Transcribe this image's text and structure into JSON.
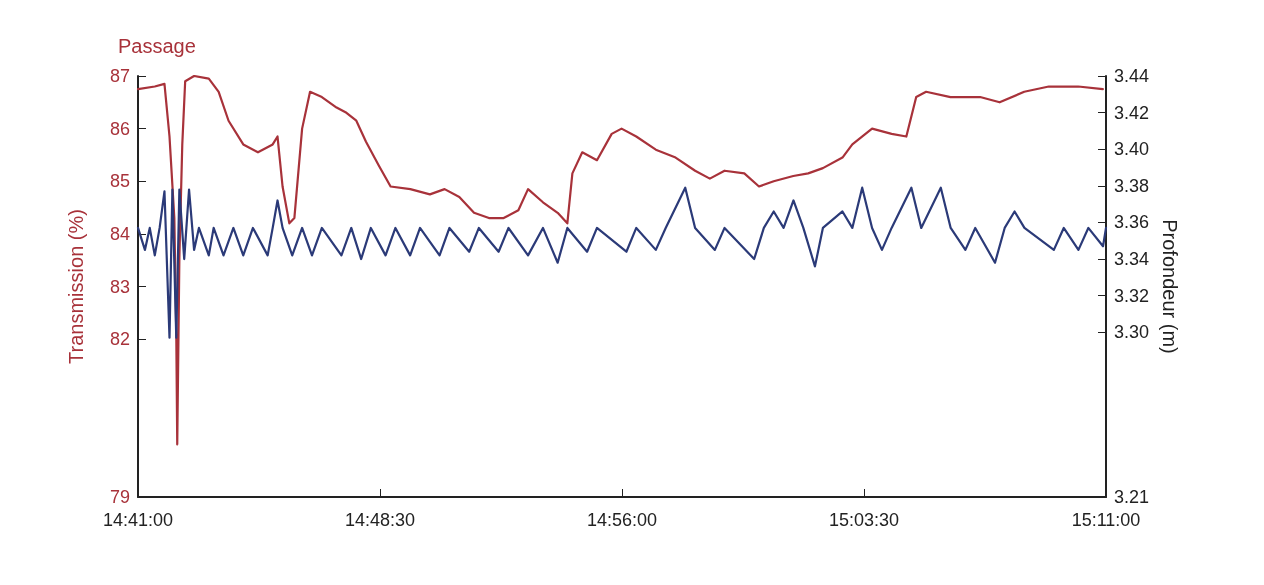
{
  "chart_data": {
    "type": "line",
    "ylabel": "Transmission (%)",
    "y2label": "Profondeur (m)",
    "annotations": [
      "Passage"
    ],
    "xlim": [
      14.68333,
      15.18333
    ],
    "xticks": [
      {
        "value": 14.68333,
        "label": "14:41:00"
      },
      {
        "value": 14.80833,
        "label": "14:48:30"
      },
      {
        "value": 14.93333,
        "label": "14:56:00"
      },
      {
        "value": 15.05833,
        "label": "15:03:30"
      },
      {
        "value": 15.18333,
        "label": "15:11:00"
      }
    ],
    "ylim": [
      79,
      87
    ],
    "yticks": [
      79,
      82,
      83,
      84,
      85,
      86,
      87
    ],
    "y2lim": [
      3.21,
      3.44
    ],
    "y2ticks": [
      3.21,
      {
        "value": 3.3,
        "label": "3.30"
      },
      3.32,
      3.34,
      3.36,
      3.38,
      {
        "value": 3.4,
        "label": "3.40"
      },
      3.42,
      3.44
    ],
    "grid": false,
    "marker": "none",
    "line_style": "solid",
    "series": [
      {
        "color": "#a8323a",
        "axis": "y",
        "x": [
          14.68333,
          14.692,
          14.697,
          14.6996,
          14.7021,
          14.7031,
          14.7036,
          14.7047,
          14.7062,
          14.7077,
          14.7123,
          14.7199,
          14.725,
          14.7301,
          14.7377,
          14.7453,
          14.7529,
          14.7554,
          14.758,
          14.7615,
          14.7641,
          14.7681,
          14.7722,
          14.7783,
          14.7859,
          14.791,
          14.7961,
          14.8011,
          14.8077,
          14.8138,
          14.824,
          14.8341,
          14.8417,
          14.8493,
          14.8569,
          14.8646,
          14.8722,
          14.8798,
          14.8848,
          14.8925,
          14.9001,
          14.9051,
          14.9077,
          14.9128,
          14.9204,
          14.928,
          14.9331,
          14.9407,
          14.9508,
          14.961,
          14.9711,
          14.9787,
          14.9863,
          14.9965,
          15.0041,
          15.0117,
          15.0218,
          15.0295,
          15.0371,
          15.0472,
          15.0523,
          15.0625,
          15.0726,
          15.0802,
          15.0853,
          15.0904,
          15.103,
          15.1183,
          15.1284,
          15.1411,
          15.1538,
          15.169,
          15.1817
        ],
        "values": [
          86.75,
          86.8,
          86.85,
          85.85,
          84.3,
          82.1,
          80.0,
          83.55,
          85.7,
          86.9,
          87.0,
          86.95,
          86.7,
          86.15,
          85.7,
          85.55,
          85.7,
          85.85,
          84.9,
          84.2,
          84.3,
          86.0,
          86.7,
          86.6,
          86.4,
          86.3,
          86.15,
          85.75,
          85.3,
          84.9,
          84.85,
          84.75,
          84.85,
          84.7,
          84.4,
          84.3,
          84.3,
          84.45,
          84.85,
          84.6,
          84.4,
          84.2,
          85.15,
          85.55,
          85.4,
          85.9,
          86.0,
          85.85,
          85.6,
          85.45,
          85.2,
          85.05,
          85.2,
          85.15,
          84.9,
          85.0,
          85.1,
          85.15,
          85.25,
          85.45,
          85.7,
          86.0,
          85.9,
          85.85,
          86.6,
          86.7,
          86.6,
          86.6,
          86.5,
          86.7,
          86.8,
          86.8,
          86.75
        ]
      },
      {
        "color": "#2b3a78",
        "axis": "y2",
        "x": [
          14.68333,
          14.6869,
          14.6894,
          14.692,
          14.6945,
          14.697,
          14.6996,
          14.7011,
          14.7031,
          14.7047,
          14.7072,
          14.7097,
          14.7123,
          14.7148,
          14.7199,
          14.7224,
          14.7275,
          14.7326,
          14.7377,
          14.7427,
          14.7503,
          14.7529,
          14.7554,
          14.758,
          14.763,
          14.7681,
          14.7732,
          14.7783,
          14.7884,
          14.7935,
          14.7986,
          14.8036,
          14.8112,
          14.8163,
          14.8239,
          14.829,
          14.8391,
          14.8442,
          14.8544,
          14.8594,
          14.8696,
          14.8747,
          14.8848,
          14.8925,
          14.9001,
          14.9051,
          14.9153,
          14.9204,
          14.9356,
          14.9407,
          14.9508,
          14.9559,
          14.966,
          14.9711,
          14.9813,
          14.9863,
          15.0016,
          15.0066,
          15.0117,
          15.0168,
          15.0219,
          15.027,
          15.033,
          15.0371,
          15.0472,
          15.0523,
          15.0574,
          15.0625,
          15.0676,
          15.0726,
          15.0828,
          15.0879,
          15.098,
          15.1031,
          15.1107,
          15.1158,
          15.126,
          15.131,
          15.1361,
          15.1412,
          15.1564,
          15.1615,
          15.1691,
          15.1742,
          15.1818,
          15.18333
        ],
        "values": [
          3.357,
          3.345,
          3.357,
          3.342,
          3.357,
          3.377,
          3.297,
          3.378,
          3.297,
          3.378,
          3.34,
          3.378,
          3.345,
          3.357,
          3.342,
          3.357,
          3.342,
          3.357,
          3.342,
          3.357,
          3.342,
          3.357,
          3.372,
          3.357,
          3.342,
          3.357,
          3.342,
          3.357,
          3.342,
          3.357,
          3.34,
          3.357,
          3.342,
          3.357,
          3.342,
          3.357,
          3.342,
          3.357,
          3.344,
          3.357,
          3.344,
          3.357,
          3.342,
          3.357,
          3.338,
          3.357,
          3.344,
          3.357,
          3.344,
          3.357,
          3.345,
          3.357,
          3.379,
          3.357,
          3.345,
          3.357,
          3.34,
          3.357,
          3.366,
          3.357,
          3.372,
          3.357,
          3.336,
          3.357,
          3.366,
          3.357,
          3.379,
          3.357,
          3.345,
          3.357,
          3.379,
          3.357,
          3.379,
          3.357,
          3.345,
          3.357,
          3.338,
          3.357,
          3.366,
          3.357,
          3.345,
          3.357,
          3.345,
          3.357,
          3.347,
          3.357
        ]
      }
    ]
  }
}
